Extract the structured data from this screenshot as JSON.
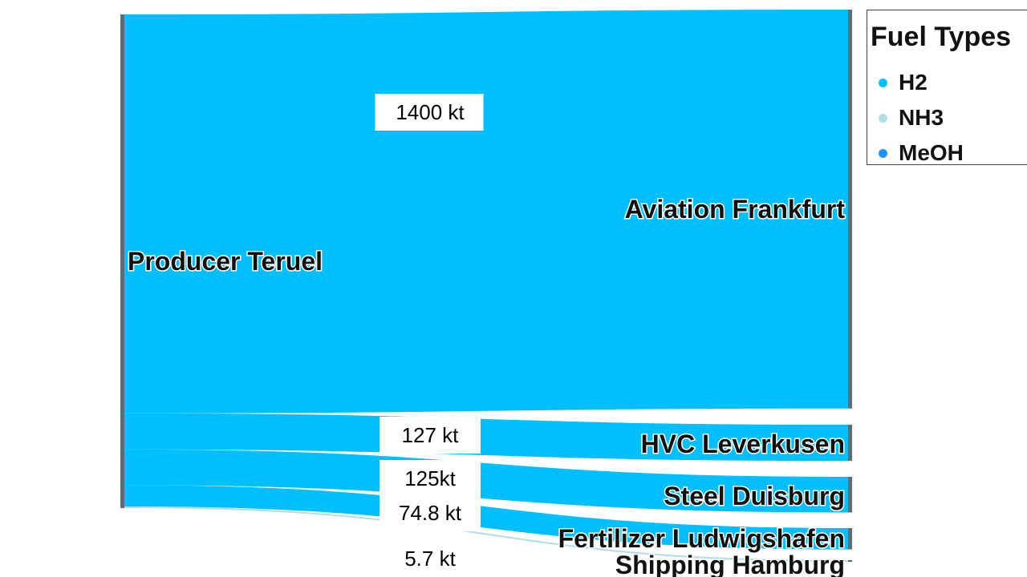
{
  "chart_data": {
    "type": "sankey",
    "source": "Producer Teruel",
    "flows": [
      {
        "target": "Aviation Frankfurt",
        "value": 1400,
        "label": "1400 kt",
        "fuel": "H2"
      },
      {
        "target": "HVC Leverkusen",
        "value": 127,
        "label": "127 kt",
        "fuel": "H2"
      },
      {
        "target": "Steel Duisburg",
        "value": 125,
        "label": "125kt",
        "fuel": "H2"
      },
      {
        "target": "Fertilizer Ludwigshafen",
        "value": 74.8,
        "label": "74.8 kt",
        "fuel": "H2"
      },
      {
        "target": "Shipping Hamburg",
        "value": 5.7,
        "label": "5.7 kt",
        "fuel": "NH3"
      }
    ],
    "legend": {
      "title": "Fuel Types",
      "placement": "top-right",
      "items": [
        {
          "name": "H2",
          "color": "#00bfff"
        },
        {
          "name": "NH3",
          "color": "#b0e0e6"
        },
        {
          "name": "MeOH",
          "color": "#1e90ff"
        }
      ]
    },
    "colors": {
      "H2": "#00bfff",
      "NH3": "#b0e0e6",
      "MeOH": "#1e90ff",
      "node": "#5f6b77"
    }
  }
}
